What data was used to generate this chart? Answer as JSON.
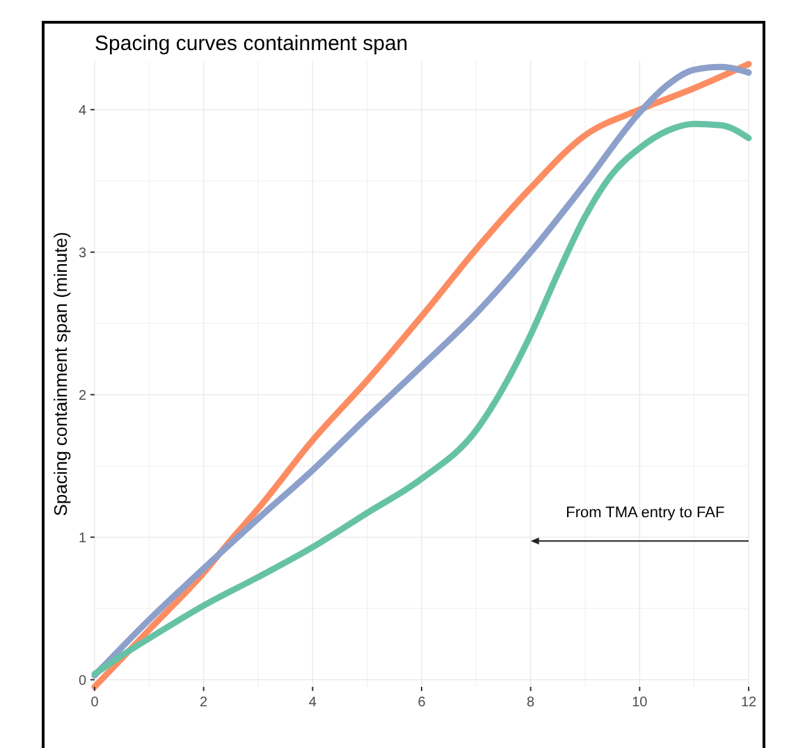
{
  "chart_data": {
    "type": "line",
    "title": "Spacing curves containment span",
    "ylabel": "Spacing containment span (minute)",
    "xlim": [
      0,
      12
    ],
    "xticks": [
      0,
      2,
      4,
      6,
      8,
      10,
      12
    ],
    "ylim": [
      -0.05,
      4.34
    ],
    "yticks": [
      0,
      1,
      2,
      3,
      4
    ],
    "grid": true,
    "marker": "none",
    "line_style": "solid",
    "annotations": [
      "From TMA entry to FAF"
    ],
    "series": [
      {
        "color": "#fc8d62",
        "x": [
          0,
          1,
          2,
          2.5,
          3,
          4,
          5,
          6,
          7,
          8,
          9,
          10,
          11,
          12
        ],
        "values": [
          -0.05,
          0.35,
          0.75,
          0.98,
          1.2,
          1.68,
          2.1,
          2.55,
          3.02,
          3.45,
          3.82,
          4.0,
          4.15,
          4.32
        ]
      },
      {
        "color": "#8da0cb",
        "x": [
          0,
          1,
          2,
          3,
          4,
          5,
          6,
          7,
          8,
          9,
          10,
          10.5,
          11,
          11.5,
          12
        ],
        "values": [
          0.03,
          0.42,
          0.78,
          1.13,
          1.47,
          1.84,
          2.2,
          2.57,
          3.0,
          3.48,
          3.98,
          4.17,
          4.28,
          4.3,
          4.26
        ]
      },
      {
        "color": "#66c2a5",
        "x": [
          0,
          0.5,
          1,
          2,
          3,
          4,
          5,
          6,
          7,
          7.5,
          8,
          8.5,
          9,
          9.5,
          10,
          10.5,
          11,
          11.5,
          12
        ],
        "values": [
          0.04,
          0.17,
          0.29,
          0.52,
          0.72,
          0.93,
          1.17,
          1.41,
          1.75,
          2.05,
          2.42,
          2.85,
          3.25,
          3.55,
          3.73,
          3.85,
          3.9,
          3.89,
          3.8
        ]
      }
    ]
  }
}
